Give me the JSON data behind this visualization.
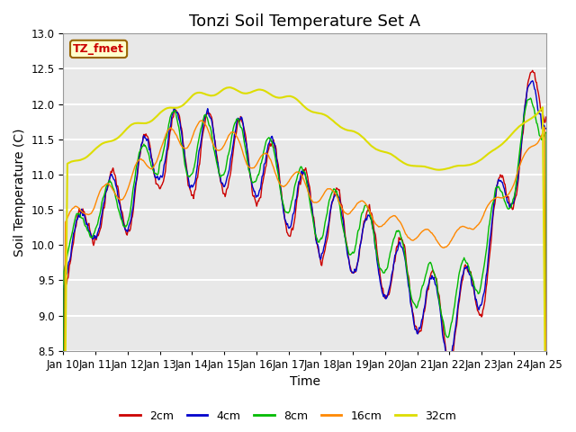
{
  "title": "Tonzi Soil Temperature Set A",
  "xlabel": "Time",
  "ylabel": "Soil Temperature (C)",
  "ylim": [
    8.5,
    13.0
  ],
  "xlim": [
    0,
    15
  ],
  "xtick_labels": [
    "Jan 10",
    "Jan 11",
    "Jan 12",
    "Jan 13",
    "Jan 14",
    "Jan 15",
    "Jan 16",
    "Jan 17",
    "Jan 18",
    "Jan 19",
    "Jan 20",
    "Jan 21",
    "Jan 22",
    "Jan 23",
    "Jan 24",
    "Jan 25"
  ],
  "colors": {
    "2cm": "#cc0000",
    "4cm": "#0000cc",
    "8cm": "#00bb00",
    "16cm": "#ff8800",
    "32cm": "#dddd00"
  },
  "legend_label": "TZ_fmet",
  "legend_box_facecolor": "#ffffcc",
  "legend_box_edgecolor": "#996600",
  "plot_bg": "#e8e8e8",
  "fig_bg": "#ffffff",
  "grid_color": "#ffffff",
  "title_fontsize": 13,
  "axis_label_fontsize": 10,
  "tick_fontsize": 8.5
}
